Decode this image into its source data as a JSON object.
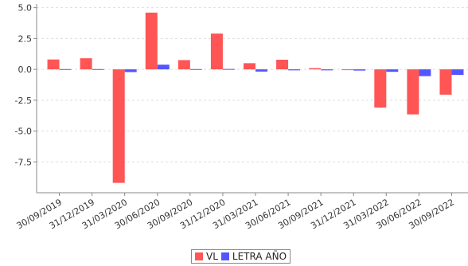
{
  "chart_data": {
    "type": "bar",
    "categories": [
      "30/09/2019",
      "31/12/2019",
      "31/03/2020",
      "30/06/2020",
      "30/09/2020",
      "31/12/2020",
      "31/03/2021",
      "30/06/2021",
      "30/09/2021",
      "31/12/2021",
      "31/03/2022",
      "30/06/2022",
      "30/09/2022"
    ],
    "series": [
      {
        "name": "VL",
        "color": "#ff5555",
        "values": [
          0.8,
          0.9,
          -9.2,
          4.6,
          0.75,
          2.9,
          0.5,
          0.78,
          0.1,
          -0.05,
          -3.1,
          -3.65,
          -2.05
        ]
      },
      {
        "name": "LETRA AÑO",
        "color": "#5555ff",
        "values": [
          0.02,
          0.02,
          -0.22,
          0.38,
          0.02,
          0.03,
          -0.18,
          -0.08,
          -0.08,
          -0.1,
          -0.2,
          -0.55,
          -0.45
        ]
      }
    ],
    "yticks": [
      "5.0",
      "2.5",
      "0.0",
      "-2.5",
      "-5.0",
      "-7.5"
    ],
    "ylim": [
      -10.0,
      5.3
    ],
    "grid": true,
    "legend_position": "bottom-center",
    "title": "",
    "xlabel": "",
    "ylabel": ""
  }
}
